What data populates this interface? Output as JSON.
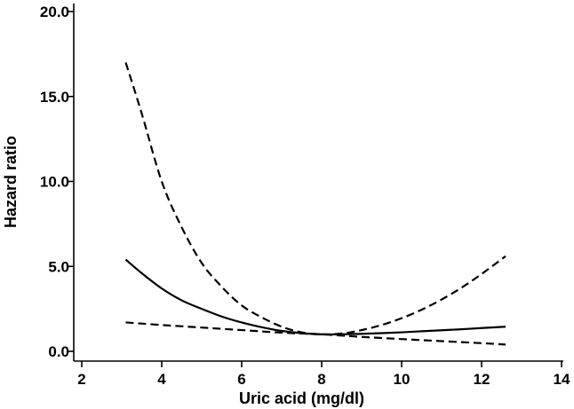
{
  "chart_data": {
    "type": "line",
    "xlabel": "Uric acid (mg/dl)",
    "ylabel": "Hazard ratio",
    "xlim": [
      2,
      14
    ],
    "ylim": [
      0,
      20
    ],
    "xticks": [
      2,
      4,
      6,
      8,
      10,
      12,
      14
    ],
    "xtick_labels": [
      "2",
      "4",
      "6",
      "8",
      "10",
      "12",
      "14"
    ],
    "yticks": [
      0,
      5,
      10,
      15,
      20
    ],
    "ytick_labels": [
      "0.0",
      "5.0",
      "10.0",
      "15.0",
      "20.0"
    ],
    "grid": false,
    "legend": "none",
    "series": [
      {
        "style": "solid",
        "color": "#000000",
        "x": [
          3.1,
          3.5,
          4.0,
          4.5,
          5.0,
          5.5,
          6.0,
          6.5,
          7.0,
          7.5,
          8.0,
          8.5,
          9.0,
          9.5,
          10.0,
          10.5,
          11.0,
          11.5,
          12.0,
          12.6
        ],
        "y": [
          5.4,
          4.6,
          3.7,
          3.0,
          2.5,
          2.05,
          1.7,
          1.42,
          1.2,
          1.07,
          1.0,
          1.0,
          1.03,
          1.07,
          1.12,
          1.18,
          1.24,
          1.3,
          1.37,
          1.45
        ]
      },
      {
        "style": "dashed",
        "color": "#000000",
        "x": [
          3.1,
          3.5,
          4.0,
          4.5,
          5.0,
          5.5,
          6.0,
          6.5,
          7.0,
          7.5,
          8.0,
          8.5,
          9.0,
          9.5,
          10.0,
          10.5,
          11.0,
          11.5,
          12.0,
          12.6
        ],
        "y": [
          17.0,
          14.0,
          10.0,
          7.3,
          5.2,
          3.8,
          2.7,
          2.0,
          1.45,
          1.12,
          1.0,
          1.05,
          1.25,
          1.55,
          1.95,
          2.45,
          3.05,
          3.75,
          4.55,
          5.6
        ]
      },
      {
        "style": "dashed",
        "color": "#000000",
        "x": [
          3.1,
          4.0,
          5.0,
          6.0,
          7.0,
          8.0,
          9.0,
          10.0,
          11.0,
          12.0,
          12.6
        ],
        "y": [
          1.7,
          1.55,
          1.4,
          1.25,
          1.1,
          1.0,
          0.85,
          0.72,
          0.6,
          0.48,
          0.4
        ]
      }
    ]
  }
}
